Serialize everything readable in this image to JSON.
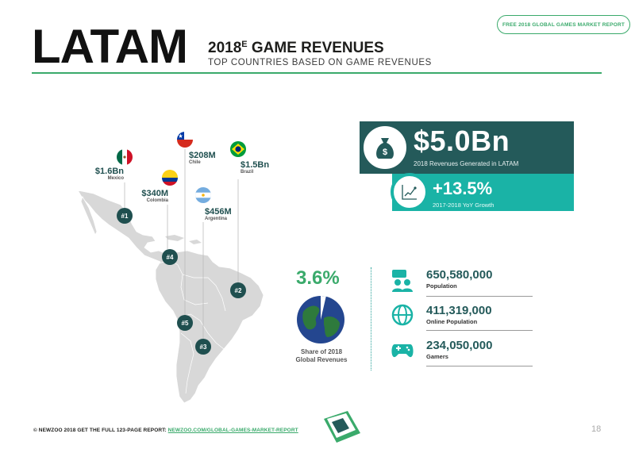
{
  "header": {
    "badge": "FREE 2018 GLOBAL GAMES MARKET REPORT",
    "region": "LATAM",
    "title_prefix": "2018",
    "title_sup": "E",
    "title_suffix": " GAME REVENUES",
    "subtitle": "TOP COUNTRIES BASED ON GAME REVENUES"
  },
  "countries": [
    {
      "rank": "#1",
      "amount": "$1.6Bn",
      "name": "Mexico",
      "flag": "mexico-flag-icon"
    },
    {
      "rank": "#2",
      "amount": "$1.5Bn",
      "name": "Brazil",
      "flag": "brazil-flag-icon"
    },
    {
      "rank": "#3",
      "amount": "$456M",
      "name": "Argentina",
      "flag": "argentina-flag-icon"
    },
    {
      "rank": "#4",
      "amount": "$340M",
      "name": "Colombia",
      "flag": "colombia-flag-icon"
    },
    {
      "rank": "#5",
      "amount": "$208M",
      "name": "Chile",
      "flag": "chile-flag-icon"
    }
  ],
  "revenue": {
    "value": "$5.0Bn",
    "label": "2018 Revenues Generated in LATAM",
    "icon": "money-bag-icon"
  },
  "growth": {
    "value": "+13.5%",
    "label": "2017-2018 YoY Growth",
    "icon": "growth-chart-icon"
  },
  "share": {
    "value": "3.6%",
    "label_line1": "Share of 2018",
    "label_line2": "Global Revenues",
    "share_fraction": 0.036
  },
  "stats": [
    {
      "value": "650,580,000",
      "label": "Population",
      "icon": "people-icon"
    },
    {
      "value": "411,319,000",
      "label": "Online Population",
      "icon": "globe-icon"
    },
    {
      "value": "234,050,000",
      "label": "Gamers",
      "icon": "gamepad-icon"
    }
  ],
  "footer": {
    "text": "© NEWZOO 2018  GET THE FULL 123-PAGE REPORT: ",
    "link": "NEWZOO.COM/GLOBAL-GAMES-MARKET-REPORT",
    "page": "18"
  },
  "colors": {
    "dark_teal": "#245a5a",
    "teal": "#1ab3a6",
    "green": "#3aaa6b",
    "map_grey": "#d6d6d6"
  }
}
